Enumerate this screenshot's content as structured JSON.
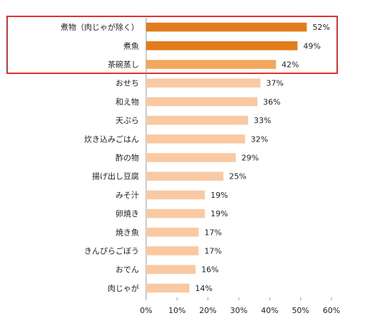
{
  "chart_data": {
    "type": "bar",
    "orientation": "horizontal",
    "categories": [
      "煮物（肉じゃが除く）",
      "煮魚",
      "茶碗蒸し",
      "おせち",
      "和え物",
      "天ぷら",
      "炊き込みごはん",
      "酢の物",
      "揚げ出し豆腐",
      "みそ汁",
      "卵焼き",
      "焼き魚",
      "きんぴらごぼう",
      "おでん",
      "肉じゃが"
    ],
    "values": [
      52,
      49,
      42,
      37,
      36,
      33,
      32,
      29,
      25,
      19,
      19,
      17,
      17,
      16,
      14
    ],
    "value_labels": [
      "52%",
      "49%",
      "42%",
      "37%",
      "36%",
      "33%",
      "32%",
      "29%",
      "25%",
      "19%",
      "19%",
      "17%",
      "17%",
      "16%",
      "14%"
    ],
    "colors": [
      "#e37c1c",
      "#e37c1c",
      "#f2a75c",
      "#f9c9a3",
      "#f9c9a3",
      "#f9c9a3",
      "#f9c9a3",
      "#f9c9a3",
      "#f9c9a3",
      "#f9c9a3",
      "#f9c9a3",
      "#f9c9a3",
      "#f9c9a3",
      "#f9c9a3",
      "#f9c9a3"
    ],
    "xlim": [
      0,
      60
    ],
    "xticks": [
      {
        "value": 0,
        "label": "0%"
      },
      {
        "value": 10,
        "label": "10%"
      },
      {
        "value": 20,
        "label": "20%"
      },
      {
        "value": 30,
        "label": "30%"
      },
      {
        "value": 40,
        "label": "40%"
      },
      {
        "value": 50,
        "label": "50%"
      },
      {
        "value": 60,
        "label": "60%"
      }
    ],
    "grid": false
  }
}
